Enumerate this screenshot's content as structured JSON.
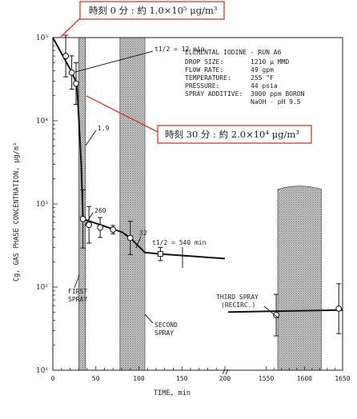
{
  "callouts": [
    {
      "text": "時刻 0 分 : 約 1.0×10⁵ μg/m³"
    },
    {
      "text": "時刻 30 分 : 約 2.0×10⁴ μg/m³"
    }
  ],
  "info": {
    "title": "ELEMENTAL IODINE - RUN A6",
    "rows": [
      {
        "label": "DROP SIZE:",
        "value": "1210 μ MMD"
      },
      {
        "label": "FLOW RATE:",
        "value": "49 gpm"
      },
      {
        "label": "TEMPERATURE:",
        "value": "255 °F"
      },
      {
        "label": "PRESSURE:",
        "value": "44 psia"
      },
      {
        "label": "SPRAY ADDITIVE:",
        "value": "3000 ppm BORON"
      },
      {
        "label": "",
        "value": "NaOH - pH 9.5"
      }
    ]
  },
  "annotations": {
    "half_life_1": "t1/2 = 12 min",
    "half_life_2": "t1/2 = 540 min",
    "slope_a": "1.9",
    "slope_b": "260",
    "slope_c": "32",
    "spray1": [
      "FIRST",
      "SPRAY"
    ],
    "spray2": [
      "SECOND",
      "SPRAY"
    ],
    "spray3": [
      "THIRD SPRAY",
      "(RECIRC.)"
    ]
  },
  "chart_data": {
    "type": "scatter",
    "title": "",
    "xlabel": "TIME, min",
    "ylabel": "Cg, GAS PHASE CONCENTRATION, μg/m³",
    "yscale": "log",
    "ylim": [
      10,
      100000
    ],
    "x_segments": [
      [
        0,
        200
      ],
      [
        1500,
        1650
      ]
    ],
    "x_tick_labels": [
      "0",
      "50",
      "100",
      "150",
      "200",
      "1550",
      "1600",
      "1650"
    ],
    "y_tick_labels": [
      "10¹",
      "10²",
      "10³",
      "10⁴",
      "10⁵"
    ],
    "series": [
      {
        "points": [
          {
            "x": 15,
            "y": 60000
          },
          {
            "x": 22,
            "y": 38000
          },
          {
            "x": 27,
            "y": 28000
          },
          {
            "x": 35,
            "y": 660
          },
          {
            "x": 42,
            "y": 560
          },
          {
            "x": 55,
            "y": 520
          },
          {
            "x": 70,
            "y": 490
          },
          {
            "x": 90,
            "y": 390
          },
          {
            "x": 125,
            "y": 250
          },
          {
            "x": 1563,
            "y": 46
          },
          {
            "x": 1645,
            "y": 55
          }
        ]
      }
    ],
    "spray_bands": [
      {
        "name": "FIRST SPRAY",
        "x_start": 30,
        "x_end": 38
      },
      {
        "name": "SECOND SPRAY",
        "x_start": 78,
        "x_end": 107
      },
      {
        "name": "THIRD SPRAY (RECIRC.)",
        "x_start": 1565,
        "x_end": 1622
      }
    ]
  }
}
